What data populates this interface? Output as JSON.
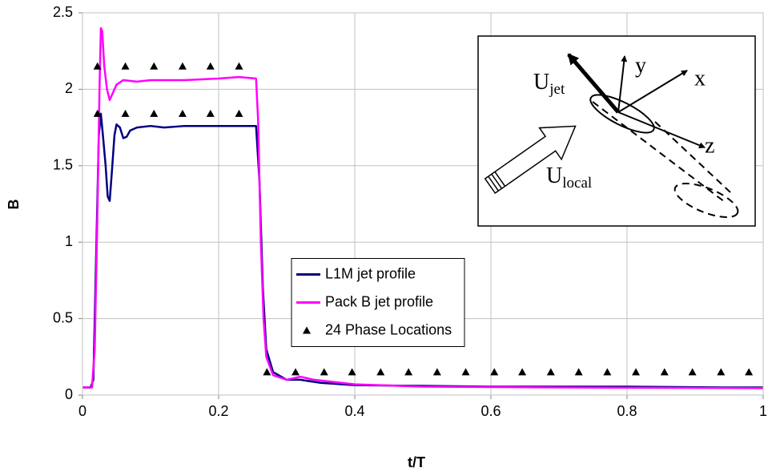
{
  "chart_data": {
    "type": "line",
    "x_label": "t/T",
    "y_label": "B",
    "xlim": [
      0,
      1
    ],
    "ylim": [
      0,
      2.5
    ],
    "xticks": [
      0,
      0.2,
      0.4,
      0.6,
      0.8,
      1
    ],
    "yticks": [
      0,
      0.5,
      1,
      1.5,
      2,
      2.5
    ],
    "grid": true,
    "legend": "center",
    "series": [
      {
        "name": "L1M jet profile",
        "color": "#000080",
        "x": [
          0,
          0.012,
          0.016,
          0.02,
          0.024,
          0.027,
          0.03,
          0.034,
          0.037,
          0.04,
          0.043,
          0.047,
          0.05,
          0.055,
          0.06,
          0.065,
          0.07,
          0.08,
          0.1,
          0.12,
          0.15,
          0.2,
          0.25,
          0.255,
          0.26,
          0.265,
          0.27,
          0.28,
          0.3,
          0.32,
          0.35,
          0.4,
          0.5,
          0.6,
          0.8,
          0.94,
          1
        ],
        "values": [
          0.05,
          0.05,
          0.1,
          0.9,
          1.7,
          1.84,
          1.7,
          1.5,
          1.3,
          1.27,
          1.45,
          1.7,
          1.77,
          1.75,
          1.68,
          1.69,
          1.73,
          1.75,
          1.76,
          1.75,
          1.76,
          1.76,
          1.76,
          1.76,
          1.4,
          0.7,
          0.3,
          0.15,
          0.1,
          0.1,
          0.08,
          0.065,
          0.06,
          0.055,
          0.055,
          0.05,
          0.05
        ]
      },
      {
        "name": "Pack B jet profile",
        "color": "#ff00ff",
        "x": [
          0,
          0.014,
          0.018,
          0.022,
          0.025,
          0.027,
          0.029,
          0.032,
          0.036,
          0.04,
          0.045,
          0.05,
          0.06,
          0.08,
          0.1,
          0.15,
          0.2,
          0.23,
          0.255,
          0.258,
          0.262,
          0.266,
          0.27,
          0.28,
          0.3,
          0.32,
          0.34,
          0.4,
          0.5,
          0.7,
          1
        ],
        "values": [
          0.05,
          0.05,
          0.3,
          1.2,
          2.0,
          2.4,
          2.38,
          2.15,
          2.0,
          1.93,
          1.98,
          2.03,
          2.06,
          2.05,
          2.06,
          2.06,
          2.07,
          2.08,
          2.07,
          1.8,
          1.0,
          0.5,
          0.25,
          0.13,
          0.1,
          0.12,
          0.1,
          0.07,
          0.055,
          0.05,
          0.045
        ]
      },
      {
        "name": "24 Phase Locations",
        "color": "#000000",
        "marker": "triangle",
        "x": [
          0.022,
          0.063,
          0.105,
          0.147,
          0.188,
          0.23,
          0.022,
          0.063,
          0.105,
          0.147,
          0.188,
          0.23,
          0.271,
          0.313,
          0.355,
          0.396,
          0.438,
          0.479,
          0.521,
          0.563,
          0.605,
          0.646,
          0.688,
          0.729,
          0.771,
          0.813,
          0.855,
          0.896,
          0.938,
          0.979
        ],
        "values": [
          2.15,
          2.15,
          2.15,
          2.15,
          2.15,
          2.15,
          1.84,
          1.84,
          1.84,
          1.84,
          1.84,
          1.84,
          0.15,
          0.15,
          0.15,
          0.15,
          0.15,
          0.15,
          0.15,
          0.15,
          0.15,
          0.15,
          0.15,
          0.15,
          0.15,
          0.15,
          0.15,
          0.15,
          0.15,
          0.15
        ]
      }
    ],
    "inset": {
      "y": "y",
      "x": "x",
      "z": "z",
      "u_jet": {
        "base": "U",
        "sub": "jet"
      },
      "u_local": {
        "base": "U",
        "sub": "local"
      }
    }
  }
}
